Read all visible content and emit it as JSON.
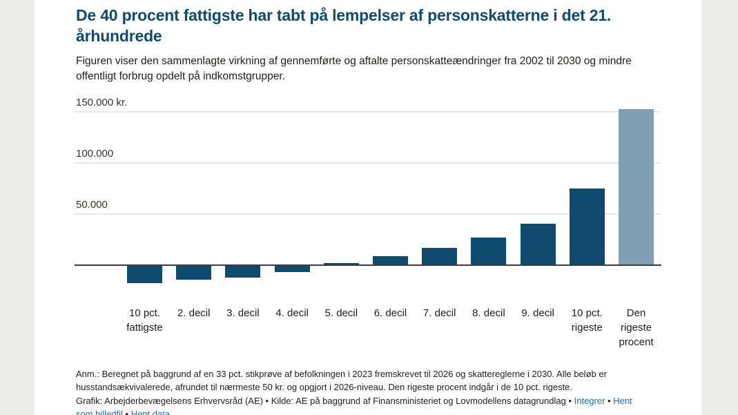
{
  "page": {
    "background_color": "#ececeb",
    "card_color": "#ffffff"
  },
  "header": {
    "title": "De 40 procent fattigste har tabt på lempelser af personskatterne i det 21. århundrede",
    "subtitle": "Figuren viser den sammenlagte virkning af gennemførte og aftalte personskatteændringer fra 2002 til 2030 og mindre offentligt forbrug opdelt på indkomstgrupper."
  },
  "chart_data": {
    "type": "bar",
    "categories": [
      "10 pct. fattigste",
      "2. decil",
      "3. decil",
      "4. decil",
      "5. decil",
      "6. decil",
      "7. decil",
      "8. decil",
      "9. decil",
      "10 pct. rigeste",
      "Den rigeste procent"
    ],
    "values": [
      -17000,
      -13500,
      -11500,
      -6000,
      2000,
      8500,
      17000,
      27000,
      40500,
      75000,
      152500
    ],
    "unit": "kr.",
    "yticks": [
      150000,
      100000,
      50000
    ],
    "ytick_labels": [
      "150.000 kr.",
      "100.000",
      "50.000"
    ],
    "ylim": [
      -25000,
      160000
    ],
    "grid": true,
    "legend": "none",
    "bar_color": "#0d4a6d",
    "highlight_color": "#7fa0b2",
    "highlight_index": 10
  },
  "footnote": {
    "text": "Anm.: Beregnet på baggrund af en 33 pct. stikprøve af befolkningen i 2023 fremskrevet til 2026 og skattereglerne i 2030. Alle beløb er husstandsækvivalerede, afrundet til nærmeste 50 kr. og opgjort i 2026-niveau. Den rigeste procent indgår i de 10 pct. rigeste."
  },
  "credits": {
    "grafik": "Grafik: Arbejderbevægelsens Erhvervsråd (AE)",
    "kilde": "Kilde: AE på baggrund af Finansministeriet og Lovmodellens datagrundlag",
    "separator": "•",
    "link_color": "#1d70a8",
    "links": [
      "Integrer",
      "Hent som billedfil",
      "Hent data"
    ]
  }
}
